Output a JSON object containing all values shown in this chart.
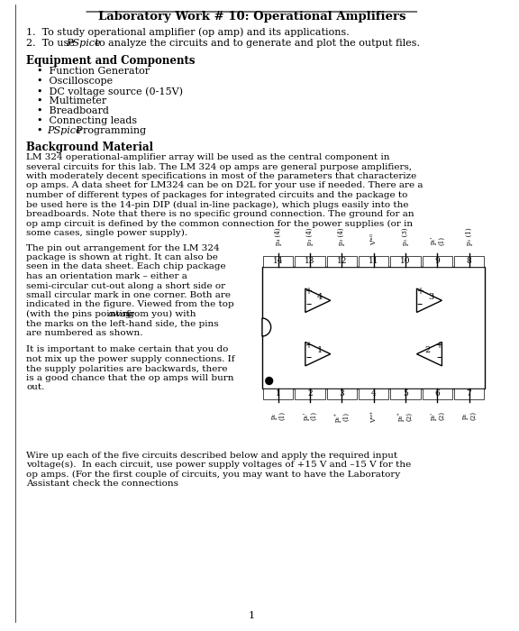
{
  "title": "Laboratory Work # 10: Operational Amplifiers",
  "objectives": [
    "To study operational amplifier (op amp) and its applications.",
    "To use PSpice to analyze the circuits and to generate and plot the output files."
  ],
  "equipment_header": "Equipment and Components",
  "equipment_items": [
    "Function Generator",
    "Oscilloscope",
    "DC voltage source (0-15V)",
    "Multimeter",
    "Breadboard",
    "Connecting leads",
    "PSpice Programming"
  ],
  "bg_header": "Background Material",
  "bg_text": "LM 324 operational-amplifier array will be used as the central component in several circuits for this lab. The LM 324 op amps are general purpose amplifiers, with moderately decent specifications in most of the parameters that characterize op amps. A data sheet for LM324 can be on D2L for your use if needed. There are a number of different types of packages for integrated circuits and the package to be used here is the 14-pin DIP (dual in-line package), which plugs easily into the breadboards. Note that there is no specific ground connection. The ground for an op amp circuit is defined by the common connection for the power supplies (or in some cases, single power supply).",
  "left_text_1": "The pin out arrangement for the LM 324 package is shown at right. It can also be seen in the data sheet. Each chip package has an orientation mark – either a semi-circular cut-out along a short side or small circular mark in one corner. Both are indicated in the figure. Viewed from the top (with the pins pointing away from you) with the marks on the left-hand side, the pins are numbered as shown.",
  "left_text_2": "It is important to make certain that you do not mix up the power supply connections. If the supply polarities are backwards, there is a good chance that the op amps will burn out.",
  "bottom_text": "Wire up each of the five circuits described below and apply the required input voltage(s).  In each circuit, use power supply voltages of +15 V and –15 V for the op amps. (For the first couple of circuits, you may want to have the Laboratory Assistant check the connections",
  "page_number": "1",
  "bg_color": "#ffffff",
  "text_color": "#000000"
}
